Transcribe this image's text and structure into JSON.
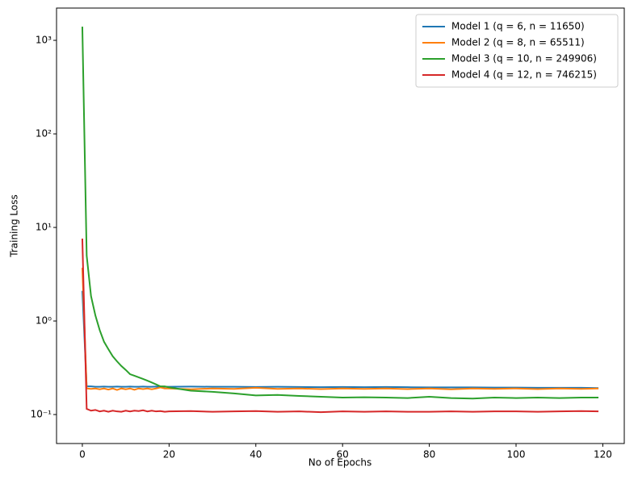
{
  "chart_data": {
    "type": "line",
    "x_label": "No of Epochs",
    "y_label": "Training Loss",
    "x": [
      0,
      1,
      2,
      3,
      4,
      5,
      6,
      7,
      8,
      9,
      10,
      11,
      12,
      13,
      14,
      15,
      16,
      17,
      18,
      19,
      20,
      25,
      30,
      35,
      40,
      45,
      50,
      55,
      60,
      65,
      70,
      75,
      80,
      85,
      90,
      95,
      100,
      105,
      110,
      115,
      119
    ],
    "series": [
      {
        "name": "Model 1 (q = 6, n = 11650)",
        "color": "#1f77b4",
        "values": [
          2.1,
          0.2,
          0.2,
          0.198,
          0.198,
          0.199,
          0.198,
          0.198,
          0.199,
          0.198,
          0.198,
          0.199,
          0.198,
          0.198,
          0.199,
          0.198,
          0.198,
          0.199,
          0.198,
          0.198,
          0.198,
          0.199,
          0.198,
          0.198,
          0.197,
          0.198,
          0.197,
          0.196,
          0.197,
          0.196,
          0.197,
          0.196,
          0.195,
          0.195,
          0.195,
          0.194,
          0.194,
          0.193,
          0.193,
          0.193,
          0.192
        ]
      },
      {
        "name": "Model 2 (q = 8, n = 65511)",
        "color": "#ff7f0e",
        "values": [
          3.7,
          0.19,
          0.188,
          0.19,
          0.186,
          0.19,
          0.185,
          0.19,
          0.183,
          0.19,
          0.186,
          0.19,
          0.184,
          0.19,
          0.187,
          0.19,
          0.186,
          0.19,
          0.195,
          0.19,
          0.19,
          0.186,
          0.19,
          0.188,
          0.193,
          0.188,
          0.19,
          0.187,
          0.19,
          0.188,
          0.19,
          0.187,
          0.19,
          0.186,
          0.19,
          0.188,
          0.19,
          0.187,
          0.19,
          0.188,
          0.19
        ]
      },
      {
        "name": "Model 3 (q = 10, n = 249906)",
        "color": "#2ca02c",
        "values": [
          1400,
          5.0,
          1.85,
          1.15,
          0.8,
          0.6,
          0.5,
          0.42,
          0.37,
          0.33,
          0.3,
          0.27,
          0.26,
          0.25,
          0.24,
          0.23,
          0.22,
          0.21,
          0.2,
          0.2,
          0.195,
          0.18,
          0.175,
          0.168,
          0.16,
          0.162,
          0.158,
          0.155,
          0.152,
          0.153,
          0.152,
          0.15,
          0.155,
          0.15,
          0.148,
          0.152,
          0.15,
          0.152,
          0.15,
          0.152,
          0.152
        ]
      },
      {
        "name": "Model 4 (q = 12, n = 746215)",
        "color": "#d62728",
        "values": [
          7.6,
          0.115,
          0.11,
          0.112,
          0.108,
          0.11,
          0.107,
          0.11,
          0.108,
          0.107,
          0.11,
          0.108,
          0.11,
          0.109,
          0.111,
          0.108,
          0.11,
          0.108,
          0.109,
          0.107,
          0.108,
          0.109,
          0.107,
          0.108,
          0.109,
          0.107,
          0.108,
          0.106,
          0.108,
          0.107,
          0.108,
          0.107,
          0.107,
          0.108,
          0.107,
          0.108,
          0.108,
          0.107,
          0.108,
          0.109,
          0.108
        ]
      }
    ],
    "xlim": [
      -5.95,
      124.95
    ],
    "ylim": [
      0.049,
      2213
    ],
    "log_y": true,
    "xticks": [
      0,
      20,
      40,
      60,
      80,
      100,
      120
    ],
    "yticks": [
      {
        "value": 0.1,
        "label": "10⁻¹"
      },
      {
        "value": 1,
        "label": "10⁰"
      },
      {
        "value": 10,
        "label": "10¹"
      },
      {
        "value": 100,
        "label": "10²"
      },
      {
        "value": 1000,
        "label": "10³"
      }
    ],
    "grid": false,
    "legend": "upper right"
  }
}
